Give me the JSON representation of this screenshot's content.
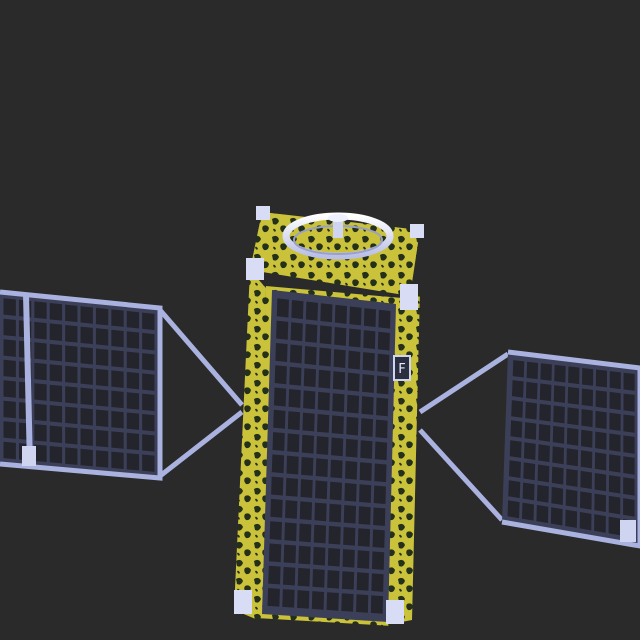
{
  "scene": {
    "subject": "satellite-render",
    "background_color": "#2a2a2a",
    "frame_color": "#aab2e0",
    "cell_color": "#24242c",
    "foil_color": "#c9c23a",
    "foil_dark_color": "#1f2a14",
    "marker_label": "F"
  }
}
